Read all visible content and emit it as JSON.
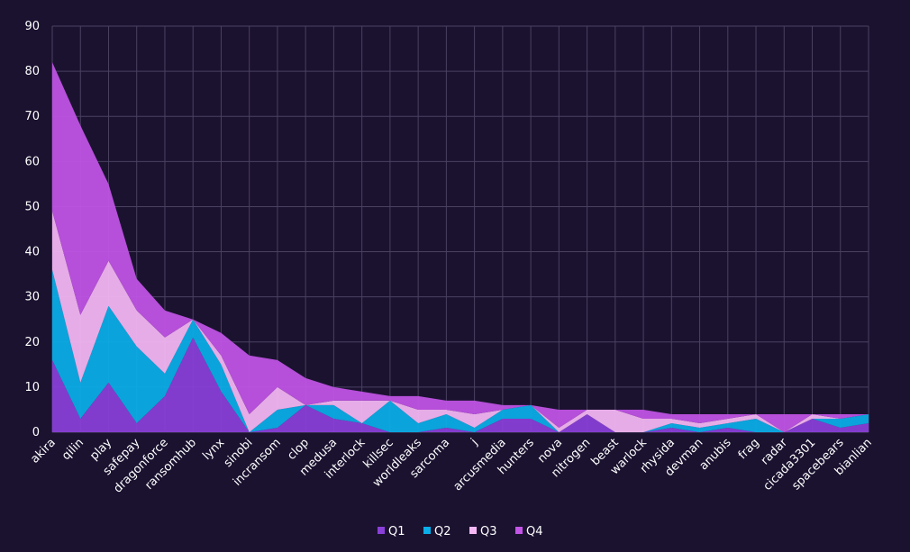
{
  "chart_data": {
    "type": "area",
    "stacked": true,
    "categories": [
      "akira",
      "qilin",
      "play",
      "safepay",
      "dragonforce",
      "ransomhub",
      "lynx",
      "sinobi",
      "incransom",
      "clop",
      "medusa",
      "interlock",
      "killsec",
      "worldleaks",
      "sarcoma",
      "j",
      "arcusmedia",
      "hunters",
      "nova",
      "nitrogen",
      "beast",
      "warlock",
      "rhysida",
      "devman",
      "anubis",
      "frag",
      "radar",
      "cicada3301",
      "spacebears",
      "bianlian"
    ],
    "series": [
      {
        "name": "Q1",
        "color": "#8a3fd9",
        "values": [
          16,
          3,
          11,
          2,
          8,
          21,
          9,
          0,
          1,
          6,
          3,
          2,
          0,
          0,
          1,
          0,
          3,
          3,
          0,
          4,
          0,
          0,
          1,
          0,
          1,
          0,
          0,
          3,
          1,
          2
        ]
      },
      {
        "name": "Q2",
        "color": "#0aaee8",
        "values": [
          20,
          8,
          17,
          17,
          5,
          4,
          6,
          0,
          4,
          0,
          3,
          0,
          7,
          2,
          3,
          1,
          2,
          3,
          0,
          0,
          0,
          0,
          1,
          1,
          1,
          3,
          0,
          0,
          2,
          2
        ]
      },
      {
        "name": "Q3",
        "color": "#f5b8f5",
        "values": [
          13,
          15,
          10,
          8,
          8,
          0,
          2,
          4,
          5,
          0,
          1,
          5,
          0,
          3,
          1,
          3,
          0,
          0,
          1,
          1,
          5,
          3,
          1,
          1,
          1,
          1,
          0,
          1,
          0,
          0
        ]
      },
      {
        "name": "Q4",
        "color": "#c254e6",
        "values": [
          33,
          42,
          17,
          7,
          6,
          0,
          5,
          13,
          6,
          6,
          3,
          2,
          1,
          3,
          2,
          3,
          1,
          0,
          4,
          0,
          0,
          2,
          1,
          2,
          1,
          0,
          4,
          0,
          1,
          0
        ]
      }
    ],
    "ylim": [
      0,
      90
    ],
    "yticks": [
      0,
      10,
      20,
      30,
      40,
      50,
      60,
      70,
      80,
      90
    ],
    "grid": true,
    "legend_position": "bottom-center"
  }
}
